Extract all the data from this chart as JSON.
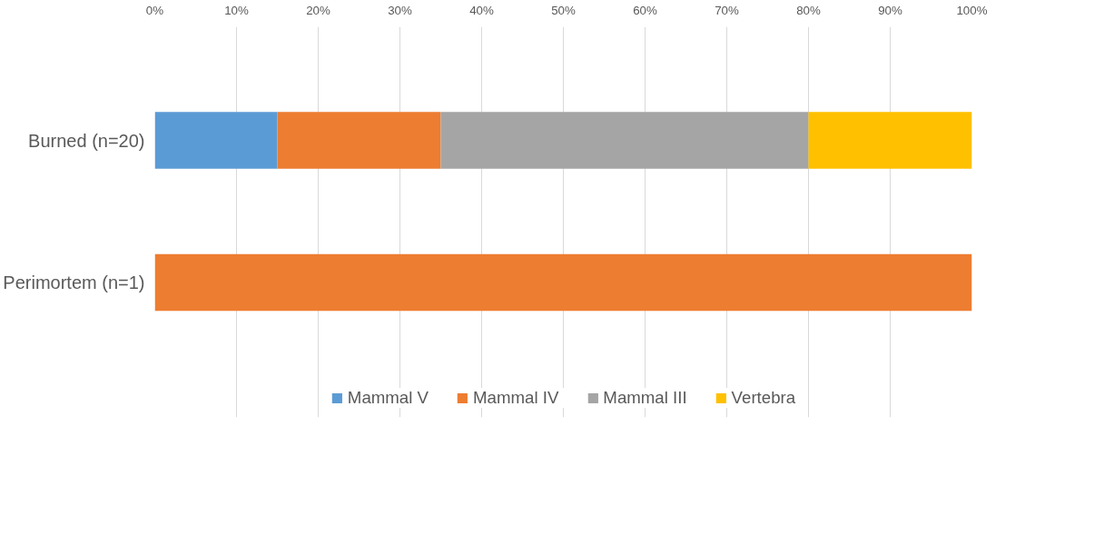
{
  "chart_data": {
    "type": "bar",
    "orientation": "horizontal",
    "stacked": true,
    "categories": [
      "Burned (n=20)",
      "Perimortem (n=1)"
    ],
    "series": [
      {
        "name": "Mammal V",
        "color": "#5b9bd5",
        "values": [
          15,
          0
        ]
      },
      {
        "name": "Mammal IV",
        "color": "#ed7d31",
        "values": [
          20,
          100
        ]
      },
      {
        "name": "Mammal III",
        "color": "#a5a5a5",
        "values": [
          45,
          0
        ]
      },
      {
        "name": "Vertebra",
        "color": "#ffc000",
        "values": [
          20,
          0
        ]
      }
    ],
    "xlim": [
      0,
      100
    ],
    "xticks": [
      {
        "value": 0,
        "label": "0%"
      },
      {
        "value": 10,
        "label": "10%"
      },
      {
        "value": 20,
        "label": "20%"
      },
      {
        "value": 30,
        "label": "30%"
      },
      {
        "value": 40,
        "label": "40%"
      },
      {
        "value": 50,
        "label": "50%"
      },
      {
        "value": 60,
        "label": "60%"
      },
      {
        "value": 70,
        "label": "70%"
      },
      {
        "value": 80,
        "label": "80%"
      },
      {
        "value": 90,
        "label": "90%"
      },
      {
        "value": 100,
        "label": "100%"
      }
    ],
    "grid": "x",
    "legend": "bottom"
  }
}
